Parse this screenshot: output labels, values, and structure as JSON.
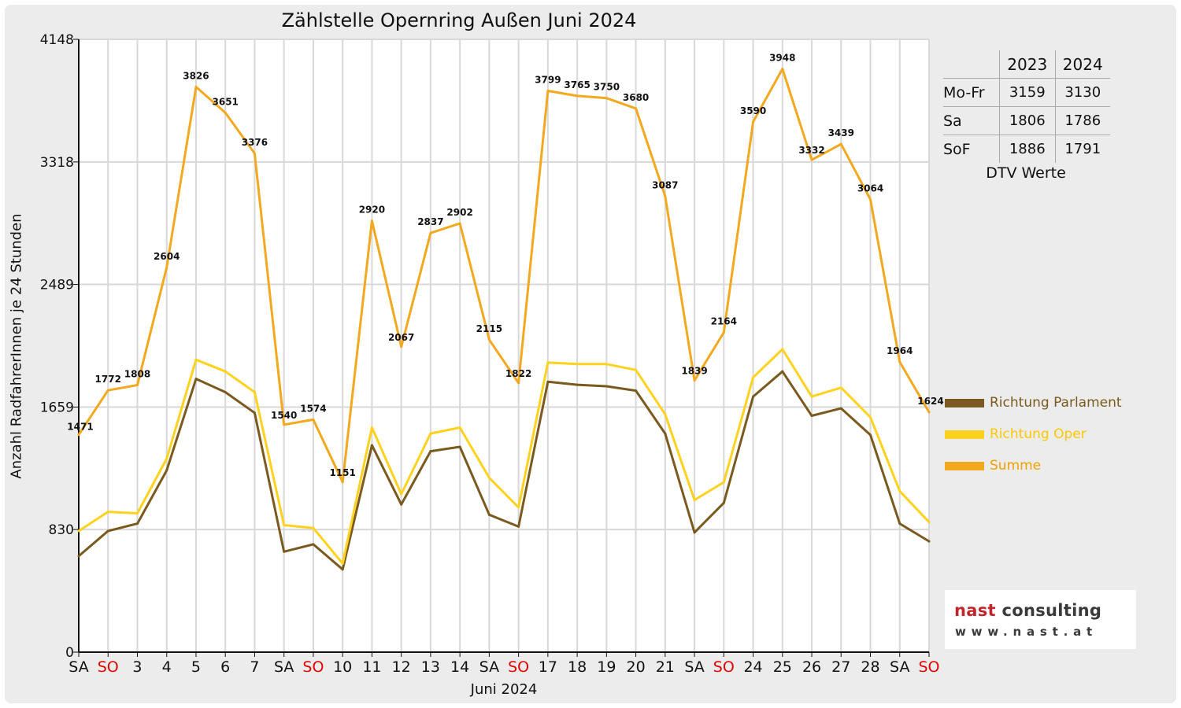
{
  "chart_data": {
    "type": "line",
    "title": "Zählstelle Opernring Außen Juni 2024",
    "xlabel": "Juni 2024",
    "ylabel": "Anzahl RadfahrerInnen je 24 Stunden",
    "ylim": [
      0,
      4148
    ],
    "yticks": [
      "0",
      "830",
      "1659",
      "2489",
      "3318",
      "4148"
    ],
    "grid": true,
    "legend_position": "right",
    "categories": [
      "SA",
      "SO",
      "3",
      "4",
      "5",
      "6",
      "7",
      "SA",
      "SO",
      "10",
      "11",
      "12",
      "13",
      "14",
      "SA",
      "SO",
      "17",
      "18",
      "19",
      "20",
      "21",
      "SA",
      "SO",
      "24",
      "25",
      "26",
      "27",
      "28",
      "SA",
      "SO"
    ],
    "weekend_color": "#e00000",
    "weekend_flags": [
      false,
      true,
      false,
      false,
      false,
      false,
      false,
      false,
      true,
      false,
      false,
      false,
      false,
      false,
      false,
      true,
      false,
      false,
      false,
      false,
      false,
      false,
      true,
      false,
      false,
      false,
      false,
      false,
      false,
      true
    ],
    "series": [
      {
        "name": "Richtung Parlament",
        "color": "#7a5a1e",
        "values": [
          650,
          820,
          870,
          1230,
          1850,
          1760,
          1620,
          680,
          730,
          560,
          1400,
          1000,
          1360,
          1390,
          930,
          850,
          1830,
          1810,
          1800,
          1770,
          1480,
          810,
          1010,
          1730,
          1900,
          1600,
          1650,
          1470,
          870,
          750
        ]
      },
      {
        "name": "Richtung Oper",
        "color": "#ffd21f",
        "values": [
          820,
          950,
          940,
          1310,
          1980,
          1900,
          1760,
          860,
          840,
          600,
          1520,
          1070,
          1480,
          1520,
          1180,
          980,
          1960,
          1950,
          1950,
          1910,
          1610,
          1030,
          1150,
          1860,
          2050,
          1730,
          1790,
          1590,
          1090,
          880
        ]
      },
      {
        "name": "Summe",
        "color": "#f2a91f",
        "values": [
          1471,
          1772,
          1808,
          2604,
          3826,
          3651,
          3376,
          1540,
          1574,
          1151,
          2920,
          2067,
          2837,
          2902,
          2115,
          1822,
          3799,
          3765,
          3750,
          3680,
          3087,
          1839,
          2164,
          3590,
          3948,
          3332,
          3439,
          3064,
          1964,
          1624
        ],
        "labels": [
          "1471",
          "1772",
          "1808",
          "2604",
          "3826",
          "3651",
          "3376",
          "1540",
          "1574",
          "1151",
          "2920",
          "2067",
          "2837",
          "2902",
          "2115",
          "1822",
          "3799",
          "3765",
          "3750",
          "3680",
          "3087",
          "1839",
          "2164",
          "3590",
          "3948",
          "3332",
          "3439",
          "3064",
          "1964",
          "1624"
        ]
      }
    ]
  },
  "dtv_table": {
    "headers": [
      "2023",
      "2024"
    ],
    "rows": [
      {
        "label": "Mo-Fr",
        "v2023": "3159",
        "v2024": "3130"
      },
      {
        "label": "Sa",
        "v2023": "1806",
        "v2024": "1786"
      },
      {
        "label": "SoF",
        "v2023": "1886",
        "v2024": "1791"
      }
    ],
    "caption": "DTV Werte"
  },
  "logo": {
    "name_part1": "nast",
    "name_part2": " consulting",
    "url": "www.nast.at"
  }
}
